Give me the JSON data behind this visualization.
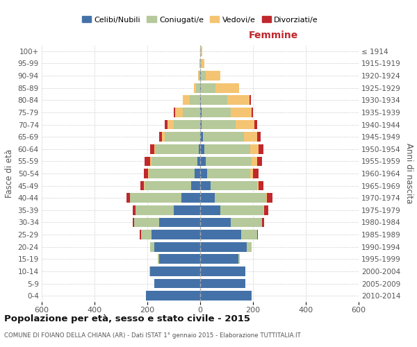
{
  "age_groups": [
    "0-4",
    "5-9",
    "10-14",
    "15-19",
    "20-24",
    "25-29",
    "30-34",
    "35-39",
    "40-44",
    "45-49",
    "50-54",
    "55-59",
    "60-64",
    "65-69",
    "70-74",
    "75-79",
    "80-84",
    "85-89",
    "90-94",
    "95-99",
    "100+"
  ],
  "birth_years": [
    "2010-2014",
    "2005-2009",
    "2000-2004",
    "1995-1999",
    "1990-1994",
    "1985-1989",
    "1980-1984",
    "1975-1979",
    "1970-1974",
    "1965-1969",
    "1960-1964",
    "1955-1959",
    "1950-1954",
    "1945-1949",
    "1940-1944",
    "1935-1939",
    "1930-1934",
    "1925-1929",
    "1920-1924",
    "1915-1919",
    "≤ 1914"
  ],
  "males": {
    "celibe": [
      205,
      175,
      190,
      155,
      175,
      185,
      155,
      100,
      70,
      35,
      20,
      10,
      5,
      0,
      0,
      0,
      0,
      0,
      0,
      0,
      0
    ],
    "coniugato": [
      0,
      0,
      2,
      5,
      15,
      40,
      95,
      145,
      195,
      175,
      175,
      175,
      165,
      135,
      100,
      65,
      40,
      15,
      5,
      2,
      0
    ],
    "vedovo": [
      0,
      0,
      0,
      0,
      0,
      0,
      0,
      0,
      0,
      2,
      3,
      5,
      5,
      10,
      25,
      30,
      25,
      10,
      2,
      0,
      0
    ],
    "divorziato": [
      0,
      0,
      0,
      0,
      0,
      3,
      5,
      10,
      15,
      15,
      15,
      20,
      15,
      10,
      10,
      5,
      0,
      0,
      0,
      0,
      0
    ]
  },
  "females": {
    "nubile": [
      195,
      170,
      170,
      145,
      175,
      155,
      115,
      75,
      55,
      40,
      25,
      20,
      15,
      10,
      5,
      5,
      3,
      2,
      2,
      0,
      0
    ],
    "coniugata": [
      0,
      0,
      2,
      5,
      20,
      60,
      120,
      165,
      195,
      175,
      165,
      175,
      175,
      155,
      130,
      110,
      100,
      55,
      20,
      5,
      2
    ],
    "vedova": [
      0,
      0,
      0,
      0,
      0,
      0,
      0,
      2,
      3,
      5,
      10,
      20,
      30,
      50,
      70,
      80,
      85,
      90,
      55,
      10,
      5
    ],
    "divorziata": [
      0,
      0,
      0,
      0,
      0,
      3,
      8,
      15,
      20,
      20,
      20,
      20,
      20,
      15,
      10,
      5,
      5,
      0,
      0,
      0,
      0
    ]
  },
  "colors": {
    "celibe": "#4472a8",
    "coniugato": "#b5c99a",
    "vedovo": "#f5c472",
    "divorziato": "#c0282d"
  },
  "title": "Popolazione per età, sesso e stato civile - 2015",
  "subtitle": "COMUNE DI FOIANO DELLA CHIANA (AR) - Dati ISTAT 1° gennaio 2015 - Elaborazione TUTTITALIA.IT",
  "xlabel_right": "Femmine",
  "ylabel_left": "Fasce di età",
  "ylabel_right": "Anni di nascita",
  "xlim": 600,
  "legend_labels": [
    "Celibi/Nubili",
    "Coniugati/e",
    "Vedovi/e",
    "Divorziati/e"
  ],
  "background_color": "#ffffff",
  "grid_color": "#cccccc"
}
